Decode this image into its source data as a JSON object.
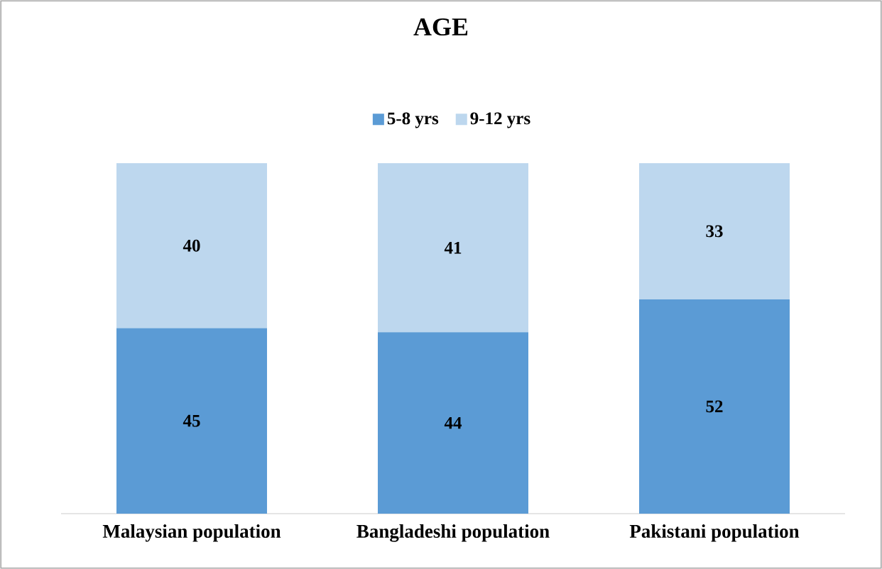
{
  "chart_data": {
    "type": "bar",
    "stacked": true,
    "title": "AGE",
    "categories": [
      "Malaysian population",
      "Bangladeshi population",
      "Pakistani population"
    ],
    "series": [
      {
        "name": "5-8 yrs",
        "color": "#5b9bd5",
        "values": [
          45,
          44,
          52
        ]
      },
      {
        "name": "9-12 yrs",
        "color": "#bdd7ee",
        "values": [
          40,
          41,
          33
        ]
      }
    ],
    "data_labels": true,
    "legend": "top"
  }
}
